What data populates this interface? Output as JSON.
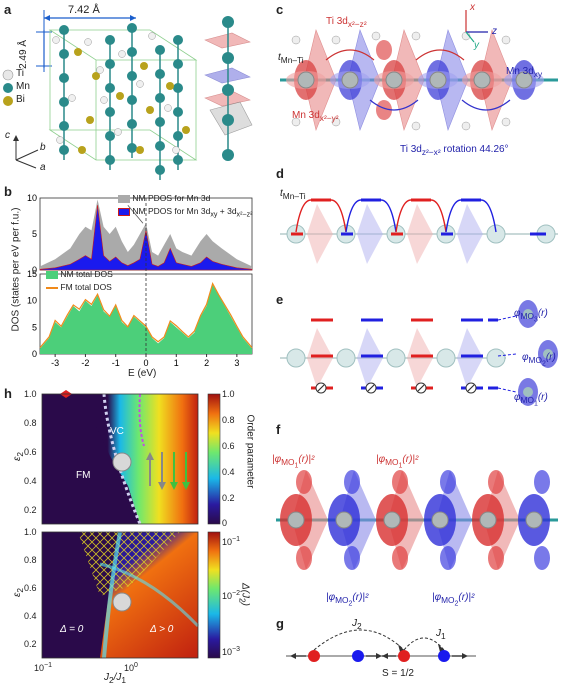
{
  "panels": {
    "a": {
      "label": "a",
      "dim_x": "7.42 Å",
      "dim_y": "2.49 Å",
      "legend": [
        "Ti",
        "Mn",
        "Bi"
      ],
      "axes": [
        "c",
        "b",
        "a"
      ],
      "colors": {
        "Ti": "#e8e8e8",
        "Mn": "#2a8a8a",
        "Bi": "#b8a21c"
      }
    },
    "b": {
      "label": "b",
      "legend_top": [
        "NM PDOS for Mn 3d",
        "NM PDOS for Mn 3d",
        "xy",
        "+ 3d",
        "x²−z²"
      ],
      "legend_bottom": [
        "NM total DOS",
        "FM total DOS"
      ],
      "ylabel": "DOS (states per eV per f.u.)",
      "xlabel": "E (eV)",
      "colors": {
        "gray": "#aaaaaa",
        "blue": "#1a1aee",
        "red": "#cc1a1a",
        "green": "#4ccf7a",
        "orange": "#f08a1a"
      }
    },
    "c": {
      "label": "c",
      "labels": {
        "ti_top": "Ti 3d",
        "ti_top_sub": "x²−z²",
        "t_mn_ti": "t",
        "t_mn_ti_sub": "Mn–Ti",
        "mn_left": "Mn 3d",
        "mn_left_sub": "x²−y²",
        "mn_right": "Mn 3d",
        "mn_right_sub": "xy",
        "ti_rot": "Ti 3d",
        "ti_rot_sub": "z²−x²",
        "ti_rot_rest": " rotation 44.26°"
      },
      "axes": [
        "x",
        "y",
        "z"
      ]
    },
    "d": {
      "label": "d",
      "t": "t",
      "t_sub": "Mn–Ti"
    },
    "e": {
      "label": "e",
      "phi": [
        "φ",
        "φ",
        "φ"
      ],
      "phi_sub": [
        "MO",
        "MO",
        "MO"
      ],
      "phi_idx": [
        "3",
        "2",
        "1"
      ],
      "phi_arg": [
        "(r)",
        "(r)",
        "(r)"
      ]
    },
    "f": {
      "label": "f",
      "top": [
        "|φ",
        "|φ"
      ],
      "top_sub": [
        "MO",
        "MO"
      ],
      "top_idx": [
        "1",
        "1"
      ],
      "top_end": [
        "(r)|²",
        "(r)|²"
      ],
      "bottom": [
        "|φ",
        "|φ"
      ],
      "bottom_sub": [
        "MO",
        "MO"
      ],
      "bottom_idx": [
        "2",
        "2"
      ],
      "bottom_end": [
        "(r)|²",
        "(r)|²"
      ]
    },
    "g": {
      "label": "g",
      "j2": "J",
      "j2_sub": "2",
      "j1": "J",
      "j1_sub": "1",
      "spin": "S = 1/2"
    },
    "h": {
      "label": "h",
      "top": {
        "ylabel": "ε",
        "ylabel_sub": "2",
        "yticks": [
          "1.0",
          "0.8",
          "0.6",
          "0.4",
          "0.2"
        ],
        "regions": [
          "VC",
          "FM"
        ],
        "colorbar_label": "Order parameter",
        "colorbar_ticks": [
          "1.0",
          "0.8",
          "0.6",
          "0.4",
          "0.2",
          "0"
        ]
      },
      "bottom": {
        "ylabel": "ε",
        "ylabel_sub": "2",
        "yticks": [
          "1.0",
          "0.8",
          "0.6",
          "0.4",
          "0.2"
        ],
        "regions": [
          "Δ = 0",
          "Δ > 0"
        ],
        "colorbar_label": "Δ(J",
        "colorbar_label_sub": "2",
        "colorbar_label_end": ")",
        "colorbar_ticks": [
          "10",
          "10",
          "10"
        ],
        "colorbar_exps": [
          "−1",
          "−2",
          "−3"
        ]
      },
      "xlabel": "J",
      "xlabel_sub": "2",
      "xlabel_mid": "/J",
      "xlabel_sub2": "1",
      "xticks": [
        "10",
        "10"
      ],
      "xtick_exps": [
        "−1",
        "0"
      ]
    }
  },
  "chart_data": [
    {
      "type": "area",
      "title": "",
      "xlabel": "E (eV)",
      "ylabel": "DOS (states per eV per f.u.)",
      "xlim": [
        -3.5,
        3.5
      ],
      "ylim": [
        0,
        10
      ],
      "xticks": [
        -3,
        -2,
        -1,
        0,
        1,
        2,
        3
      ],
      "yticks": [
        0,
        5,
        10
      ],
      "series": [
        {
          "name": "NM PDOS for Mn 3d",
          "x": [
            -3.5,
            -3,
            -2.5,
            -2.2,
            -2,
            -1.8,
            -1.6,
            -1.4,
            -1.2,
            -1,
            -0.8,
            -0.6,
            -0.4,
            -0.2,
            0,
            0.2,
            0.4,
            0.6,
            0.8,
            1,
            1.2,
            1.5,
            1.8,
            2,
            2.2,
            2.5,
            3,
            3.5
          ],
          "values": [
            0.5,
            1.5,
            3,
            5,
            6,
            5.5,
            9.8,
            6,
            5,
            6,
            4,
            2.5,
            3.5,
            5,
            6.5,
            2.5,
            2,
            3.5,
            5,
            3,
            2.5,
            2,
            4,
            5,
            4,
            3,
            1.5,
            0.5
          ]
        },
        {
          "name": "NM PDOS for Mn 3dxy + 3dx²−z²",
          "x": [
            -3.5,
            -3,
            -2.5,
            -2.2,
            -2,
            -1.8,
            -1.6,
            -1.4,
            -1.2,
            -1,
            -0.8,
            -0.6,
            -0.4,
            -0.2,
            0,
            0.2,
            0.4,
            0.6,
            0.8,
            1,
            1.2,
            1.5,
            1.8,
            2,
            2.2,
            2.5,
            3,
            3.5
          ],
          "values": [
            0.1,
            0.3,
            0.8,
            1.5,
            2,
            1.5,
            9,
            2,
            1.2,
            1.8,
            1,
            0.6,
            1,
            1.5,
            5.5,
            0.8,
            0.5,
            1,
            3,
            1,
            0.8,
            0.5,
            1,
            1.8,
            1.2,
            0.8,
            0.3,
            0.1
          ]
        }
      ]
    },
    {
      "type": "area",
      "title": "",
      "xlabel": "E (eV)",
      "ylabel": "DOS (states per eV per f.u.)",
      "xlim": [
        -3.5,
        3.5
      ],
      "ylim": [
        0,
        15
      ],
      "xticks": [
        -3,
        -2,
        -1,
        0,
        1,
        2,
        3
      ],
      "yticks": [
        0,
        5,
        10,
        15
      ],
      "series": [
        {
          "name": "NM total DOS",
          "x": [
            -3.5,
            -3.2,
            -3,
            -2.8,
            -2.6,
            -2.4,
            -2.2,
            -2,
            -1.8,
            -1.6,
            -1.4,
            -1.2,
            -1,
            -0.8,
            -0.6,
            -0.4,
            -0.2,
            0,
            0.2,
            0.4,
            0.6,
            0.8,
            1,
            1.2,
            1.4,
            1.6,
            1.8,
            2,
            2.2,
            2.4,
            2.6,
            2.8,
            3,
            3.2,
            3.5
          ],
          "values": [
            1,
            3,
            6,
            5,
            7,
            9,
            8,
            10,
            9,
            11,
            8,
            7,
            9,
            6,
            5,
            7,
            6,
            5,
            3,
            2,
            3,
            6,
            5,
            4,
            3,
            4,
            7,
            9,
            13,
            11,
            9,
            7,
            5,
            3,
            1
          ]
        },
        {
          "name": "FM total DOS",
          "x": [
            -3.5,
            -3.2,
            -3,
            -2.8,
            -2.6,
            -2.4,
            -2.2,
            -2,
            -1.8,
            -1.6,
            -1.4,
            -1.2,
            -1,
            -0.8,
            -0.6,
            -0.4,
            -0.2,
            0,
            0.2,
            0.4,
            0.6,
            0.8,
            1,
            1.2,
            1.4,
            1.6,
            1.8,
            2,
            2.2,
            2.4,
            2.6,
            2.8,
            3,
            3.2,
            3.5
          ],
          "values": [
            1.2,
            3.2,
            6.3,
            5.2,
            7.3,
            9.2,
            8.4,
            10.2,
            9.3,
            11.2,
            8.3,
            7.1,
            9.2,
            6.3,
            5.1,
            7.2,
            6.2,
            5.2,
            3.2,
            2.3,
            3.2,
            6.2,
            5.3,
            4.2,
            3.2,
            4.3,
            7.2,
            9.3,
            13.2,
            11.1,
            9.2,
            7.3,
            5.2,
            3.2,
            1.2
          ]
        }
      ]
    },
    {
      "type": "heatmap",
      "title": "",
      "xlabel": "J2/J1",
      "ylabel": "ε2",
      "xscale": "log",
      "xlim": [
        0.1,
        4
      ],
      "ylim": [
        0.1,
        1.0
      ],
      "colorbar": {
        "label": "Order parameter",
        "range": [
          0,
          1.0
        ],
        "ticks": [
          0,
          0.2,
          0.4,
          0.6,
          0.8,
          1.0
        ]
      },
      "regions": [
        "VC",
        "FM"
      ],
      "boundary_x": [
        0.3,
        0.45,
        0.6,
        0.75,
        0.9,
        1.0
      ],
      "boundary_y": [
        1.0,
        0.8,
        0.6,
        0.4,
        0.2,
        0.1
      ]
    },
    {
      "type": "heatmap",
      "title": "",
      "xlabel": "J2/J1",
      "ylabel": "ε2",
      "xscale": "log",
      "xlim": [
        0.1,
        4
      ],
      "ylim": [
        0.1,
        1.0
      ],
      "colorbar": {
        "label": "Δ(J2)",
        "scale": "log",
        "range": [
          0.001,
          0.1
        ],
        "ticks": [
          0.001,
          0.01,
          0.1
        ]
      },
      "regions": [
        "Δ = 0",
        "Δ > 0"
      ]
    }
  ]
}
